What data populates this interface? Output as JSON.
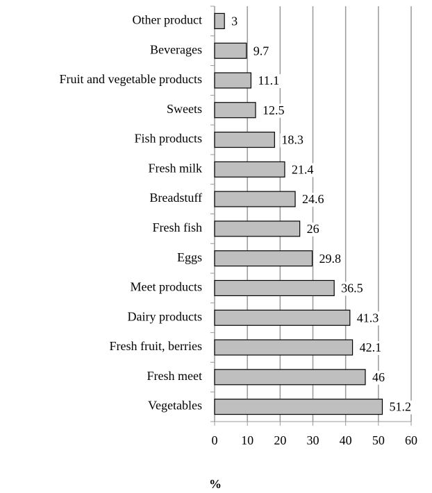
{
  "chart_data": {
    "type": "barh",
    "categories": [
      "Other product",
      "Beverages",
      "Fruit and vegetable products",
      "Sweets",
      "Fish products",
      "Fresh milk",
      "Breadstuff",
      "Fresh fish",
      "Eggs",
      "Meet products",
      "Dairy products",
      "Fresh fruit, berries",
      "Fresh meet",
      "Vegetables"
    ],
    "values": [
      3,
      9.7,
      11.1,
      12.5,
      18.3,
      21.4,
      24.6,
      26,
      29.8,
      36.5,
      41.3,
      42.1,
      46,
      51.2
    ],
    "color": "#bfbfbf",
    "xlabel": "%",
    "xlim": [
      0,
      60
    ],
    "xticks": [
      0,
      10,
      20,
      30,
      40,
      50,
      60
    ],
    "grid": true
  }
}
